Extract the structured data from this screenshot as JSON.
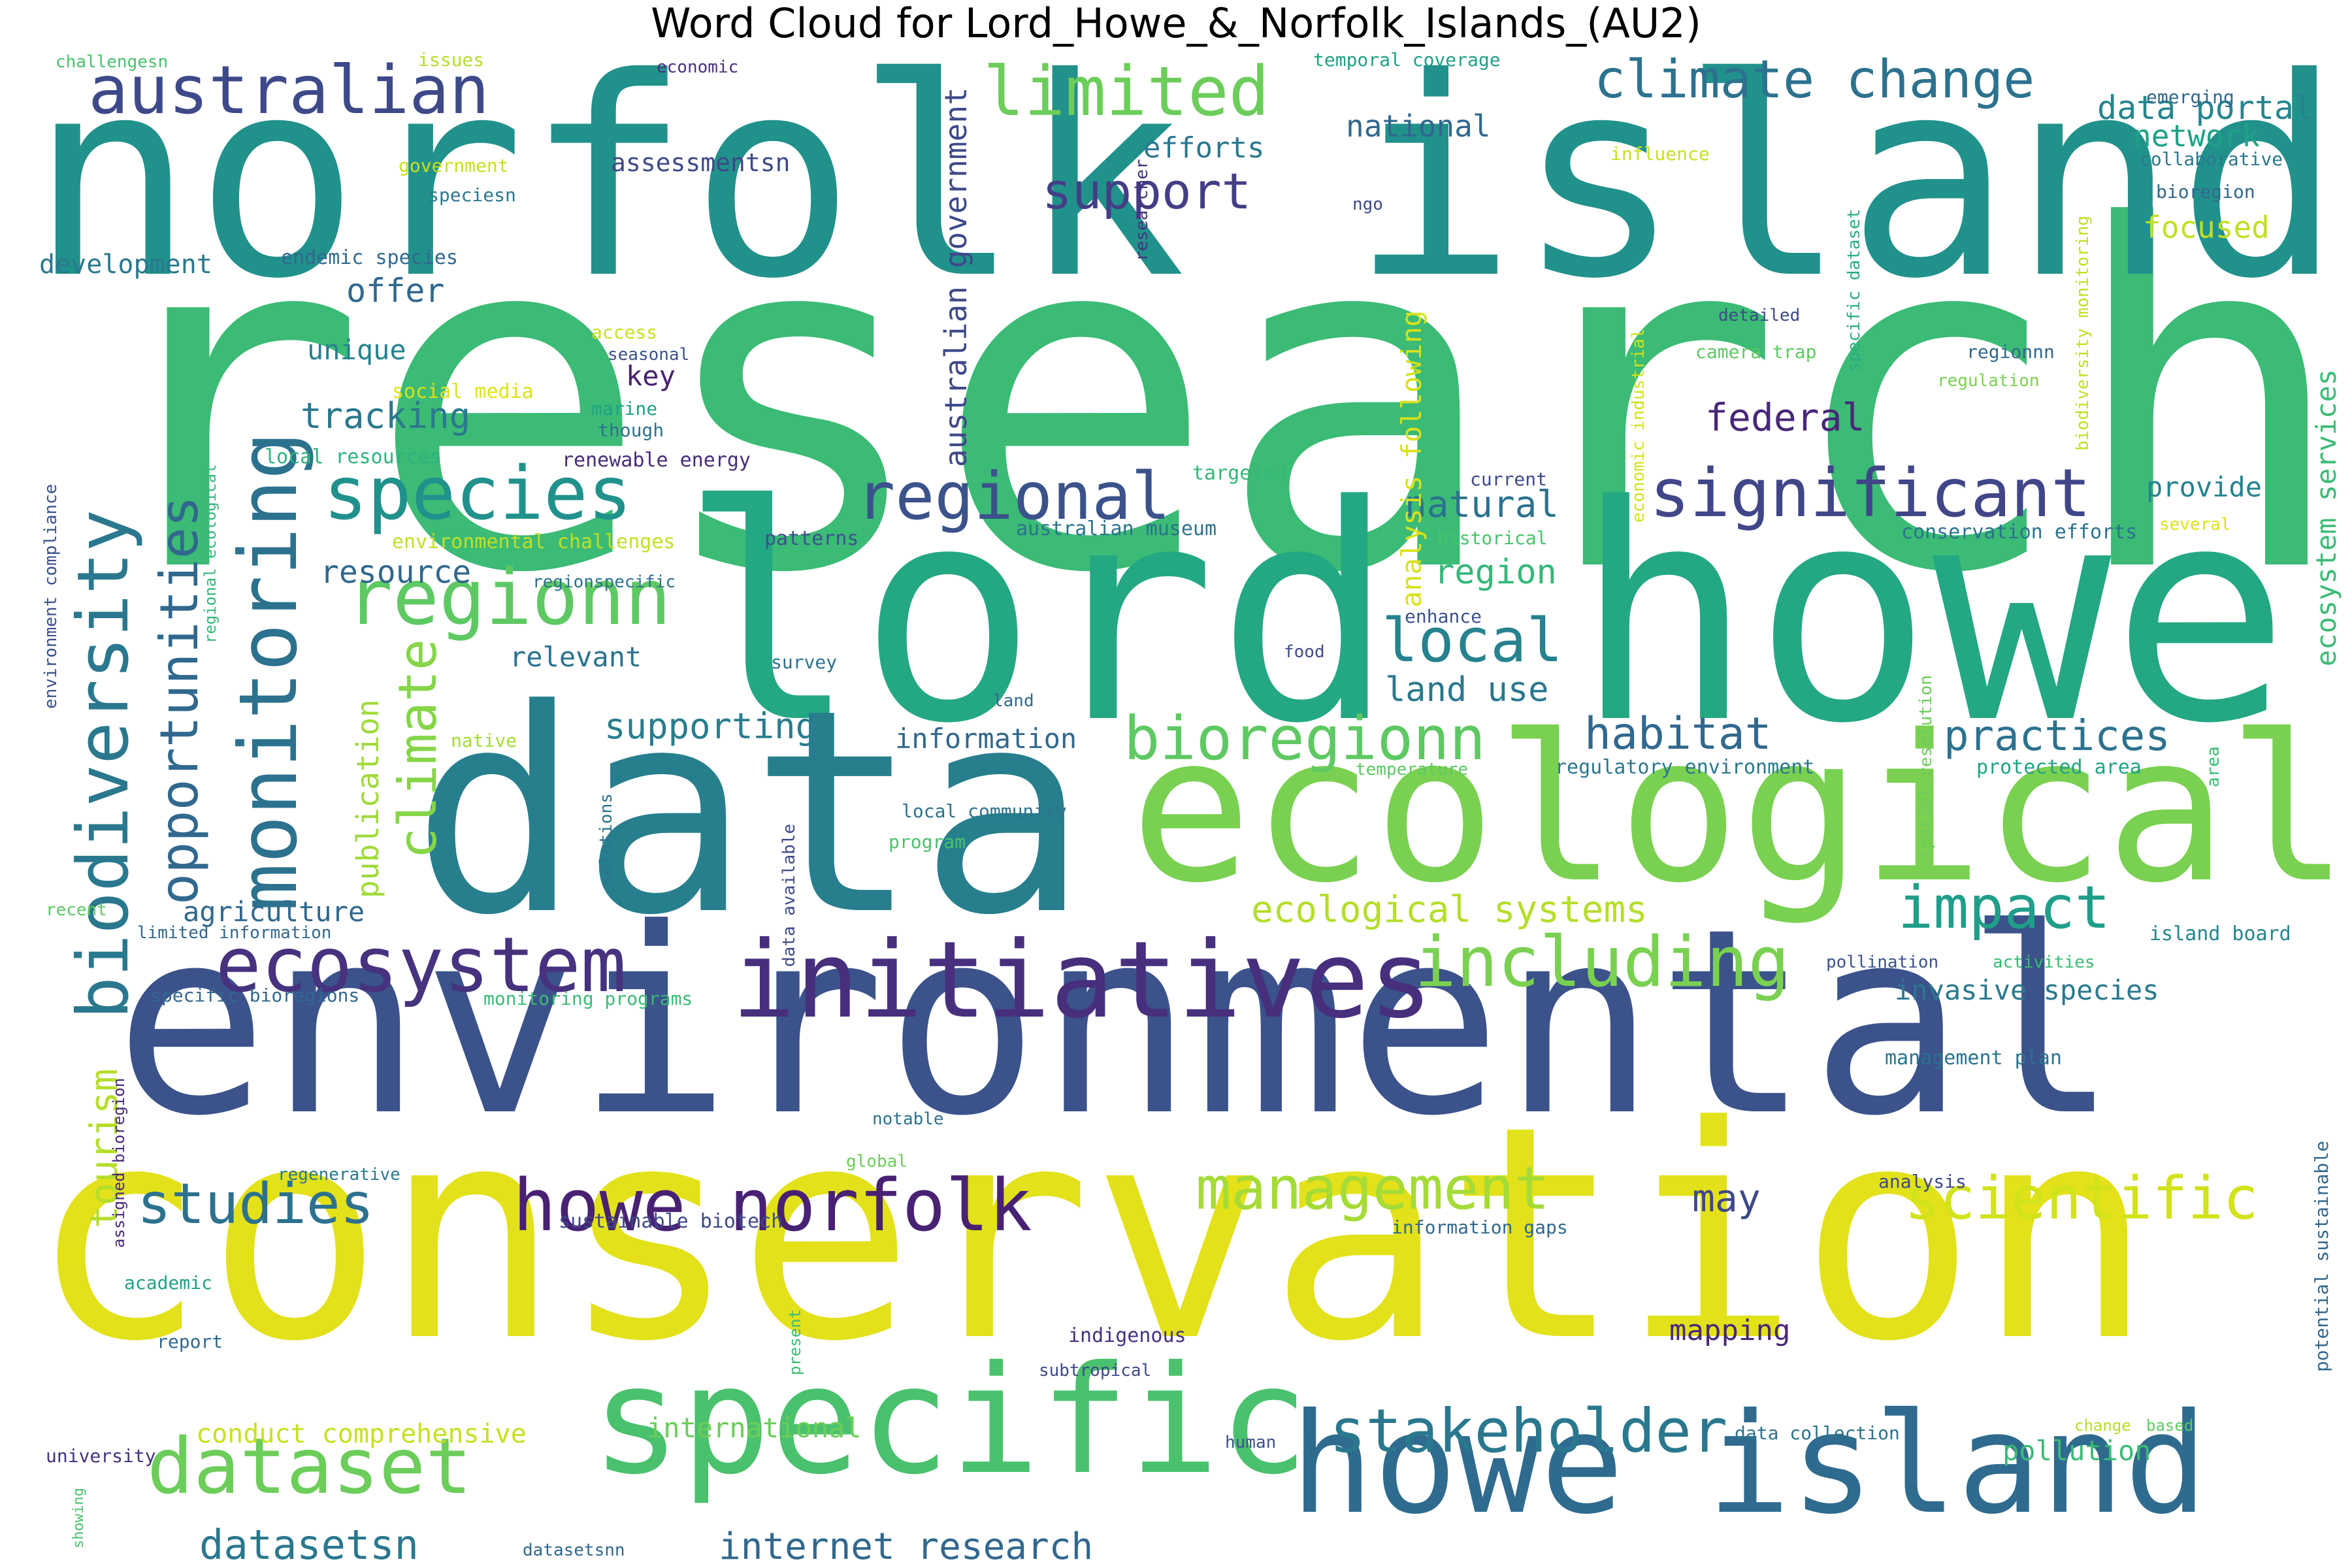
{
  "title": "Word Cloud for Lord_Howe_&_Norfolk_Islands_(AU2)",
  "palette": {
    "dark_purple": "#440154",
    "indigo": "#472f7d",
    "navy": "#3b528b",
    "blue": "#2c728e",
    "teal": "#21918c",
    "sea_green": "#27ad81",
    "green": "#5ec962",
    "lime": "#addc30",
    "yellow": "#e3e11a"
  },
  "words": [
    {
      "text": "research",
      "color": "#3bbb75"
    },
    {
      "text": "norfolk island",
      "color": "#21918c"
    },
    {
      "text": "lord howe",
      "color": "#23a883"
    },
    {
      "text": "conservation",
      "color": "#e3e11a"
    },
    {
      "text": "environmental",
      "color": "#3b528b"
    },
    {
      "text": "data",
      "color": "#277f8e"
    },
    {
      "text": "ecological",
      "color": "#7ad151"
    },
    {
      "text": "howe island",
      "color": "#2f6b8e"
    },
    {
      "text": "specific",
      "color": "#4ac16d"
    },
    {
      "text": "initiatives",
      "color": "#472f7d"
    },
    {
      "text": "ecosystem",
      "color": "#46327e"
    },
    {
      "text": "biodiversity",
      "color": "#2a788e"
    },
    {
      "text": "monitoring",
      "color": "#2c728e"
    },
    {
      "text": "opportunities",
      "color": "#31688e"
    },
    {
      "text": "species",
      "color": "#21918c"
    },
    {
      "text": "regionn",
      "color": "#5ec962"
    },
    {
      "text": "regional",
      "color": "#3b528b"
    },
    {
      "text": "significant",
      "color": "#404688"
    },
    {
      "text": "australian",
      "color": "#3e4989"
    },
    {
      "text": "limited",
      "color": "#6ccd5a"
    },
    {
      "text": "climate change",
      "color": "#2c728e"
    },
    {
      "text": "support",
      "color": "#433e85"
    },
    {
      "text": "dataset",
      "color": "#6ccd5a"
    },
    {
      "text": "howe norfolk",
      "color": "#482173"
    },
    {
      "text": "including",
      "color": "#7ad151"
    },
    {
      "text": "impact",
      "color": "#1f9e89"
    },
    {
      "text": "bioregionn",
      "color": "#5ec962"
    },
    {
      "text": "management",
      "color": "#a5db36"
    },
    {
      "text": "scientific",
      "color": "#d2e21b"
    },
    {
      "text": "stakeholder",
      "color": "#2a788e"
    },
    {
      "text": "studies",
      "color": "#2c728e"
    },
    {
      "text": "climate",
      "color": "#86d549"
    },
    {
      "text": "local",
      "color": "#26828e"
    },
    {
      "text": "habitat",
      "color": "#31688e"
    },
    {
      "text": "practices",
      "color": "#2c728e"
    },
    {
      "text": "datasetsn",
      "color": "#2a788e"
    },
    {
      "text": "internet research",
      "color": "#31688e"
    },
    {
      "text": "ecological systems",
      "color": "#b5de2b"
    },
    {
      "text": "data portal",
      "color": "#25858e"
    },
    {
      "text": "network",
      "color": "#1fa187"
    },
    {
      "text": "focused",
      "color": "#c2df23"
    },
    {
      "text": "national",
      "color": "#31688e"
    },
    {
      "text": "efforts",
      "color": "#2a788e"
    },
    {
      "text": "assessmentsn",
      "color": "#3e4989"
    },
    {
      "text": "offer",
      "color": "#31688e"
    },
    {
      "text": "unique",
      "color": "#26828e"
    },
    {
      "text": "tracking",
      "color": "#2a788e"
    },
    {
      "text": "federal",
      "color": "#482878"
    },
    {
      "text": "natural",
      "color": "#2c728e"
    },
    {
      "text": "region",
      "color": "#35b779"
    },
    {
      "text": "land use",
      "color": "#2a788e"
    },
    {
      "text": "resource",
      "color": "#31688e"
    },
    {
      "text": "relevant",
      "color": "#2c728e"
    },
    {
      "text": "supporting",
      "color": "#287d8e"
    },
    {
      "text": "information",
      "color": "#31688e"
    },
    {
      "text": "agriculture",
      "color": "#31688e"
    },
    {
      "text": "tourism",
      "color": "#b5de2b"
    },
    {
      "text": "publication",
      "color": "#a0da39"
    },
    {
      "text": "australian government",
      "color": "#3e4989"
    },
    {
      "text": "analysis following",
      "color": "#d8e219"
    },
    {
      "text": "ecosystem services",
      "color": "#3bbb75"
    },
    {
      "text": "provide",
      "color": "#26828e"
    },
    {
      "text": "conservation efforts",
      "color": "#2c728e"
    },
    {
      "text": "invasive species",
      "color": "#2a788e"
    },
    {
      "text": "may",
      "color": "#3e4989"
    },
    {
      "text": "mapping",
      "color": "#482878"
    },
    {
      "text": "conduct comprehensive",
      "color": "#c8e020"
    },
    {
      "text": "international",
      "color": "#6ccd5a"
    },
    {
      "text": "pollution",
      "color": "#3bbb75"
    },
    {
      "text": "development",
      "color": "#2a788e"
    },
    {
      "text": "endemic species",
      "color": "#31688e"
    },
    {
      "text": "key",
      "color": "#481f70"
    },
    {
      "text": "though",
      "color": "#2c728e"
    },
    {
      "text": "marine",
      "color": "#1fa187"
    },
    {
      "text": "renewable energy",
      "color": "#472c7a"
    },
    {
      "text": "social media",
      "color": "#dde318"
    },
    {
      "text": "local resources",
      "color": "#2db27d"
    },
    {
      "text": "environmental challenges",
      "color": "#c2df23"
    },
    {
      "text": "patterns",
      "color": "#3b528b"
    },
    {
      "text": "australian museum",
      "color": "#2c728e"
    },
    {
      "text": "targeted",
      "color": "#35b779"
    },
    {
      "text": "current",
      "color": "#3e4989"
    },
    {
      "text": "historical",
      "color": "#4ac16d"
    },
    {
      "text": "enhance",
      "color": "#3b528b"
    },
    {
      "text": "food",
      "color": "#3e4989"
    },
    {
      "text": "survey",
      "color": "#2c728e"
    },
    {
      "text": "land",
      "color": "#31688e"
    },
    {
      "text": "temperature",
      "color": "#5ec962"
    },
    {
      "text": "regulatory environment",
      "color": "#2a788e"
    },
    {
      "text": "protected area",
      "color": "#20a386"
    },
    {
      "text": "local community",
      "color": "#2c728e"
    },
    {
      "text": "program",
      "color": "#4ac16d"
    },
    {
      "text": "camera trap",
      "color": "#5ec962"
    },
    {
      "text": "regulation",
      "color": "#7ad151"
    },
    {
      "text": "regionnn",
      "color": "#31688e"
    },
    {
      "text": "seasonal",
      "color": "#3b528b"
    },
    {
      "text": "access",
      "color": "#c8e020"
    },
    {
      "text": "detailed",
      "color": "#3e4989"
    },
    {
      "text": "researcher",
      "color": "#46327e"
    },
    {
      "text": "economic industrial",
      "color": "#d2e21b"
    },
    {
      "text": "specific dataset",
      "color": "#27ad81"
    },
    {
      "text": "biodiversity monitoring",
      "color": "#c2df23"
    },
    {
      "text": "spatial resolution",
      "color": "#6ccd5a"
    },
    {
      "text": "area",
      "color": "#3bbb75"
    },
    {
      "text": "several",
      "color": "#dde318"
    },
    {
      "text": "temporal coverage",
      "color": "#1fa187"
    },
    {
      "text": "influence",
      "color": "#c8e020"
    },
    {
      "text": "ngo",
      "color": "#3e4989"
    },
    {
      "text": "collaborative",
      "color": "#2a788e"
    },
    {
      "text": "emerging",
      "color": "#31688e"
    },
    {
      "text": "bioregion",
      "color": "#31688e"
    },
    {
      "text": "challengesn",
      "color": "#4ac16d"
    },
    {
      "text": "issues",
      "color": "#b5de2b"
    },
    {
      "text": "economic",
      "color": "#46327e"
    },
    {
      "text": "government",
      "color": "#c8e020"
    },
    {
      "text": "speciesn",
      "color": "#2a788e"
    },
    {
      "text": "environment compliance",
      "color": "#3b528b"
    },
    {
      "text": "regional ecological",
      "color": "#35b779"
    },
    {
      "text": "regionspecific",
      "color": "#2c728e"
    },
    {
      "text": "native",
      "color": "#a5db36"
    },
    {
      "text": "solutions",
      "color": "#2c728e"
    },
    {
      "text": "data available",
      "color": "#3e4989"
    },
    {
      "text": "recent",
      "color": "#5ec962"
    },
    {
      "text": "limited information",
      "color": "#31688e"
    },
    {
      "text": "specific bioregions",
      "color": "#31688e"
    },
    {
      "text": "monitoring programs",
      "color": "#3bbb75"
    },
    {
      "text": "assigned bioregion",
      "color": "#482878"
    },
    {
      "text": "regenerative",
      "color": "#2a788e"
    },
    {
      "text": "sustainable biotech",
      "color": "#3e4989"
    },
    {
      "text": "global",
      "color": "#6ccd5a"
    },
    {
      "text": "notable",
      "color": "#2c728e"
    },
    {
      "text": "academic",
      "color": "#1fa187"
    },
    {
      "text": "report",
      "color": "#31688e"
    },
    {
      "text": "present",
      "color": "#3bbb75"
    },
    {
      "text": "indigenous",
      "color": "#46327e"
    },
    {
      "text": "subtropical",
      "color": "#3e4989"
    },
    {
      "text": "information gaps",
      "color": "#31688e"
    },
    {
      "text": "management plan",
      "color": "#2c728e"
    },
    {
      "text": "analysis",
      "color": "#3e4989"
    },
    {
      "text": "potential sustainable",
      "color": "#31688e"
    },
    {
      "text": "pollination",
      "color": "#3b528b"
    },
    {
      "text": "activities",
      "color": "#3bbb75"
    },
    {
      "text": "island board",
      "color": "#25858e"
    },
    {
      "text": "data collection",
      "color": "#2c728e"
    },
    {
      "text": "change",
      "color": "#b5de2b"
    },
    {
      "text": "based",
      "color": "#5ec962"
    },
    {
      "text": "human",
      "color": "#3b528b"
    },
    {
      "text": "university",
      "color": "#46327e"
    },
    {
      "text": "showing",
      "color": "#4ac16d"
    },
    {
      "text": "datasetsnn",
      "color": "#31688e"
    }
  ]
}
